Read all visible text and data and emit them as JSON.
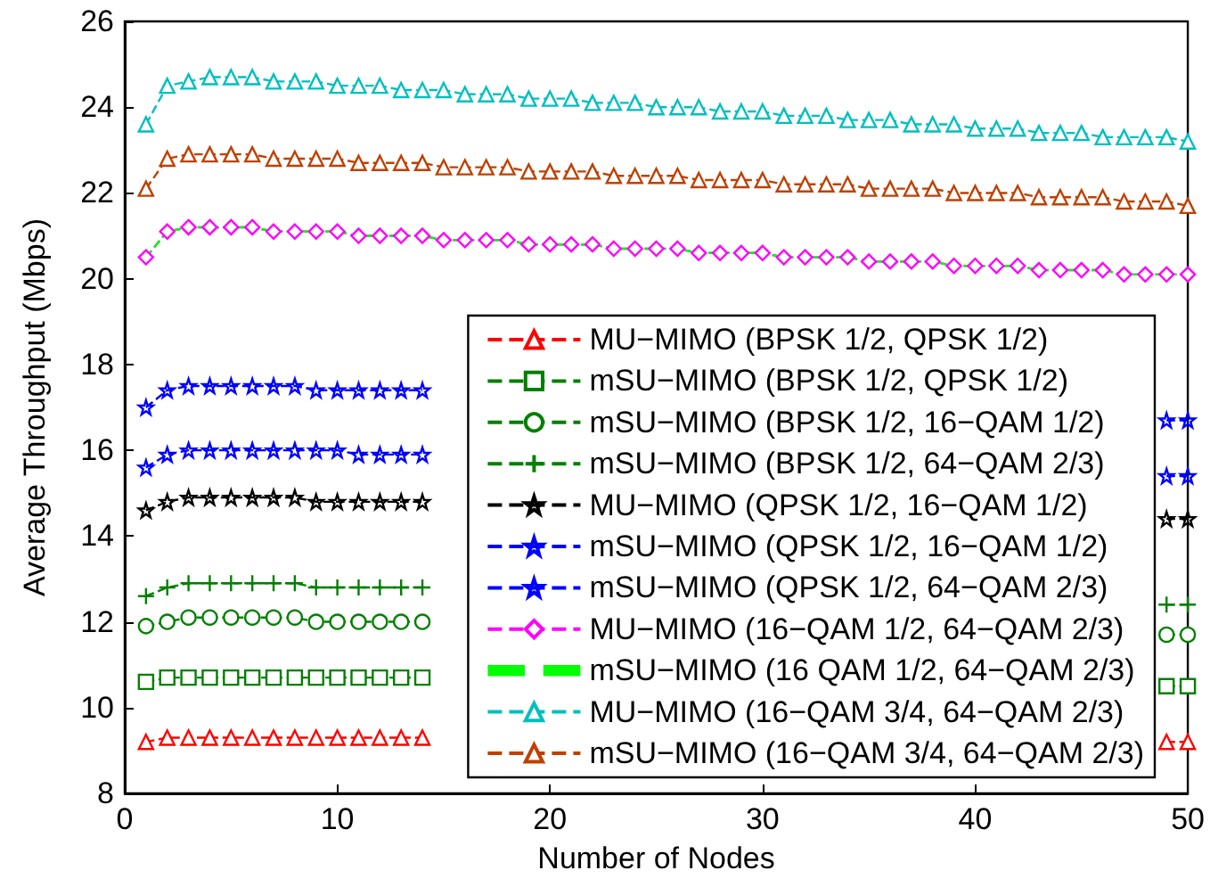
{
  "chart_data": {
    "type": "line",
    "xlabel": "Number of Nodes",
    "ylabel": "Average Throughput (Mbps)",
    "x": [
      1,
      2,
      3,
      4,
      5,
      6,
      7,
      8,
      9,
      10,
      11,
      12,
      13,
      14,
      15,
      16,
      17,
      18,
      19,
      20,
      21,
      22,
      23,
      24,
      25,
      26,
      27,
      28,
      29,
      30,
      31,
      32,
      33,
      34,
      35,
      36,
      37,
      38,
      39,
      40,
      41,
      42,
      43,
      44,
      45,
      46,
      47,
      48,
      49,
      50
    ],
    "xlim": [
      0,
      50
    ],
    "xticks": [
      0,
      10,
      20,
      30,
      40,
      50
    ],
    "ylim": [
      8,
      26
    ],
    "yticks": [
      8,
      10,
      12,
      14,
      16,
      18,
      20,
      22,
      24,
      26
    ],
    "grid": false,
    "legend": "bottom right",
    "line_style": "dashed",
    "series": [
      {
        "name": "MU−MIMO (BPSK 1/2, QPSK 1/2)",
        "color": "#ff0000",
        "marker": "triangle",
        "values": [
          9.2,
          9.3,
          9.3,
          9.3,
          9.3,
          9.3,
          9.3,
          9.3,
          9.3,
          9.3,
          9.3,
          9.3,
          9.3,
          9.3,
          null,
          null,
          null,
          null,
          null,
          null,
          null,
          null,
          null,
          null,
          null,
          null,
          null,
          null,
          null,
          null,
          null,
          null,
          null,
          null,
          null,
          null,
          null,
          null,
          null,
          null,
          null,
          null,
          null,
          null,
          null,
          null,
          null,
          null,
          9.2,
          9.2
        ]
      },
      {
        "name": "mSU−MIMO (BPSK 1/2, QPSK 1/2)",
        "color": "#008000",
        "marker": "square",
        "values": [
          10.6,
          10.7,
          10.7,
          10.7,
          10.7,
          10.7,
          10.7,
          10.7,
          10.7,
          10.7,
          10.7,
          10.7,
          10.7,
          10.7,
          null,
          null,
          null,
          null,
          null,
          null,
          null,
          null,
          null,
          null,
          null,
          null,
          null,
          null,
          null,
          null,
          null,
          null,
          null,
          null,
          null,
          null,
          null,
          null,
          null,
          null,
          null,
          null,
          null,
          null,
          null,
          null,
          null,
          null,
          10.5,
          10.5
        ]
      },
      {
        "name": "mSU−MIMO (BPSK 1/2, 16−QAM 1/2)",
        "color": "#008000",
        "marker": "circle",
        "values": [
          11.9,
          12.0,
          12.1,
          12.1,
          12.1,
          12.1,
          12.1,
          12.1,
          12.0,
          12.0,
          12.0,
          12.0,
          12.0,
          12.0,
          null,
          null,
          null,
          null,
          null,
          null,
          null,
          null,
          null,
          null,
          null,
          null,
          null,
          null,
          null,
          null,
          null,
          null,
          null,
          null,
          null,
          null,
          null,
          null,
          null,
          null,
          null,
          null,
          null,
          null,
          null,
          null,
          null,
          null,
          11.7,
          11.7
        ]
      },
      {
        "name": "mSU−MIMO (BPSK 1/2, 64−QAM 2/3)",
        "color": "#008000",
        "marker": "cross",
        "values": [
          12.6,
          12.8,
          12.9,
          12.9,
          12.9,
          12.9,
          12.9,
          12.9,
          12.8,
          12.8,
          12.8,
          12.8,
          12.8,
          12.8,
          null,
          null,
          null,
          null,
          null,
          null,
          null,
          null,
          null,
          null,
          null,
          null,
          null,
          null,
          null,
          null,
          null,
          null,
          null,
          null,
          null,
          null,
          null,
          null,
          null,
          null,
          null,
          null,
          null,
          null,
          null,
          null,
          null,
          null,
          12.4,
          12.4
        ]
      },
      {
        "name": "MU−MIMO (QPSK 1/2, 16−QAM 1/2)",
        "color": "#000000",
        "marker": "star",
        "values": [
          14.6,
          14.8,
          14.9,
          14.9,
          14.9,
          14.9,
          14.9,
          14.9,
          14.8,
          14.8,
          14.8,
          14.8,
          14.8,
          14.8,
          null,
          null,
          null,
          null,
          null,
          null,
          null,
          null,
          null,
          null,
          null,
          null,
          null,
          null,
          null,
          null,
          null,
          null,
          null,
          null,
          null,
          null,
          null,
          null,
          null,
          null,
          null,
          null,
          null,
          null,
          null,
          null,
          null,
          null,
          14.4,
          14.4
        ]
      },
      {
        "name": "mSU−MIMO (QPSK 1/2, 16−QAM 1/2)",
        "color": "#0000ff",
        "marker": "star",
        "values": [
          15.6,
          15.9,
          16.0,
          16.0,
          16.0,
          16.0,
          16.0,
          16.0,
          16.0,
          16.0,
          15.9,
          15.9,
          15.9,
          15.9,
          null,
          null,
          null,
          null,
          null,
          null,
          null,
          null,
          null,
          null,
          null,
          null,
          null,
          null,
          null,
          null,
          null,
          null,
          null,
          null,
          null,
          null,
          null,
          null,
          null,
          null,
          null,
          null,
          null,
          null,
          null,
          null,
          null,
          null,
          15.4,
          15.4
        ]
      },
      {
        "name": "mSU−MIMO (QPSK 1/2, 64−QAM 2/3)",
        "color": "#0000ff",
        "marker": "star",
        "values": [
          17.0,
          17.4,
          17.5,
          17.5,
          17.5,
          17.5,
          17.5,
          17.5,
          17.4,
          17.4,
          17.4,
          17.4,
          17.4,
          17.4,
          null,
          null,
          null,
          null,
          null,
          null,
          null,
          null,
          null,
          null,
          null,
          null,
          null,
          null,
          null,
          null,
          null,
          null,
          null,
          null,
          null,
          null,
          null,
          null,
          null,
          null,
          null,
          null,
          null,
          null,
          null,
          null,
          null,
          null,
          16.7,
          16.7
        ]
      },
      {
        "name": "MU−MIMO (16−QAM 1/2, 64−QAM 2/3)",
        "color": "#ff00ff",
        "marker": "diamond",
        "values": [
          20.5,
          21.1,
          21.2,
          21.2,
          21.2,
          21.2,
          21.1,
          21.1,
          21.1,
          21.1,
          21.0,
          21.0,
          21.0,
          21.0,
          20.9,
          20.9,
          20.9,
          20.9,
          20.8,
          20.8,
          20.8,
          20.8,
          20.7,
          20.7,
          20.7,
          20.7,
          20.6,
          20.6,
          20.6,
          20.6,
          20.5,
          20.5,
          20.5,
          20.5,
          20.4,
          20.4,
          20.4,
          20.4,
          20.3,
          20.3,
          20.3,
          20.3,
          20.2,
          20.2,
          20.2,
          20.2,
          20.1,
          20.1,
          20.1,
          20.1
        ]
      },
      {
        "name": "mSU−MIMO (16 QAM 1/2, 64−QAM 2/3)",
        "color": "#00ff00",
        "marker": "none",
        "values": [
          20.5,
          21.1,
          21.2,
          21.2,
          21.2,
          21.2,
          21.1,
          21.1,
          21.1,
          21.1,
          21.0,
          21.0,
          21.0,
          21.0,
          20.9,
          20.9,
          20.9,
          20.9,
          20.8,
          20.8,
          20.8,
          20.8,
          20.7,
          20.7,
          20.7,
          20.7,
          20.6,
          20.6,
          20.6,
          20.6,
          20.5,
          20.5,
          20.5,
          20.5,
          20.4,
          20.4,
          20.4,
          20.4,
          20.3,
          20.3,
          20.3,
          20.3,
          20.2,
          20.2,
          20.2,
          20.2,
          20.1,
          20.1,
          20.1,
          20.1
        ]
      },
      {
        "name": "MU−MIMO (16−QAM 3/4, 64−QAM 2/3)",
        "color": "#00bfbf",
        "marker": "triangle",
        "values": [
          23.6,
          24.5,
          24.6,
          24.7,
          24.7,
          24.7,
          24.6,
          24.6,
          24.6,
          24.5,
          24.5,
          24.5,
          24.4,
          24.4,
          24.4,
          24.3,
          24.3,
          24.3,
          24.2,
          24.2,
          24.2,
          24.1,
          24.1,
          24.1,
          24.0,
          24.0,
          24.0,
          23.9,
          23.9,
          23.9,
          23.8,
          23.8,
          23.8,
          23.7,
          23.7,
          23.7,
          23.6,
          23.6,
          23.6,
          23.5,
          23.5,
          23.5,
          23.4,
          23.4,
          23.4,
          23.3,
          23.3,
          23.3,
          23.3,
          23.2
        ]
      },
      {
        "name": "mSU−MIMO (16−QAM 3/4, 64−QAM 2/3)",
        "color": "#bf4000",
        "marker": "triangle",
        "values": [
          22.1,
          22.8,
          22.9,
          22.9,
          22.9,
          22.9,
          22.8,
          22.8,
          22.8,
          22.8,
          22.7,
          22.7,
          22.7,
          22.7,
          22.6,
          22.6,
          22.6,
          22.6,
          22.5,
          22.5,
          22.5,
          22.5,
          22.4,
          22.4,
          22.4,
          22.4,
          22.3,
          22.3,
          22.3,
          22.3,
          22.2,
          22.2,
          22.2,
          22.2,
          22.1,
          22.1,
          22.1,
          22.1,
          22.0,
          22.0,
          22.0,
          22.0,
          21.9,
          21.9,
          21.9,
          21.9,
          21.8,
          21.8,
          21.8,
          21.7
        ]
      }
    ]
  }
}
